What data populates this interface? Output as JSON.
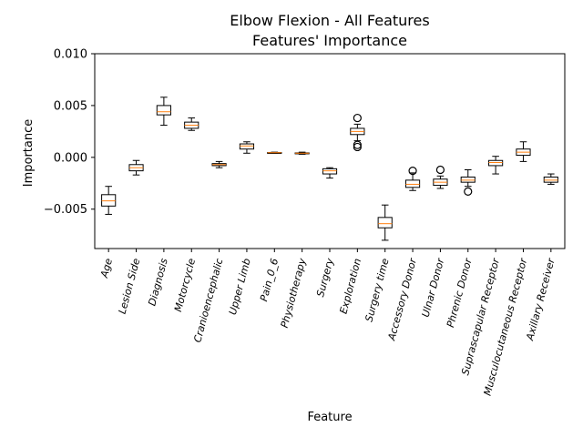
{
  "chart_data": {
    "type": "box",
    "title": "Elbow Flexion - All Features",
    "subtitle": "Features' Importance",
    "xlabel": "Feature",
    "ylabel": "Importance",
    "ylim": [
      -0.0088,
      0.01
    ],
    "yticks": [
      -0.005,
      0.0,
      0.005,
      0.01
    ],
    "ytick_labels": [
      "−0.005",
      "0.000",
      "0.005",
      "0.010"
    ],
    "grid": false,
    "colors": {
      "box": "#000000",
      "median": "#ff7f0e",
      "outlier": "#000000"
    },
    "categories": [
      "Age",
      "Lesion Side",
      "Diagnosis",
      "Motorcycle",
      "Cranioencephalic",
      "Upper Limb",
      "Pain_0_6",
      "Physiotherapy",
      "Surgery",
      "Exploration",
      "Surgery time",
      "Accessory Donor",
      "Ulnar Donor",
      "Phrenic Donor",
      "Suprascapular Receptor",
      "Musculocutaneous Receptor",
      "Axillary Receiver"
    ],
    "boxes": [
      {
        "whislo": -0.0055,
        "q1": -0.0047,
        "med": -0.0042,
        "q3": -0.0036,
        "whishi": -0.0028,
        "fliers": []
      },
      {
        "whislo": -0.0017,
        "q1": -0.0013,
        "med": -0.001,
        "q3": -0.0007,
        "whishi": -0.0003,
        "fliers": []
      },
      {
        "whislo": 0.0031,
        "q1": 0.0041,
        "med": 0.0044,
        "q3": 0.005,
        "whishi": 0.0058,
        "fliers": []
      },
      {
        "whislo": 0.0026,
        "q1": 0.0028,
        "med": 0.0031,
        "q3": 0.0034,
        "whishi": 0.0038,
        "fliers": []
      },
      {
        "whislo": -0.001,
        "q1": -0.0008,
        "med": -0.0007,
        "q3": -0.0006,
        "whishi": -0.0004,
        "fliers": []
      },
      {
        "whislo": 0.0004,
        "q1": 0.0008,
        "med": 0.0011,
        "q3": 0.0013,
        "whishi": 0.0015,
        "fliers": []
      },
      {
        "whislo": 0.0004,
        "q1": 0.00043,
        "med": 0.00045,
        "q3": 0.00047,
        "whishi": 0.0005,
        "fliers": []
      },
      {
        "whislo": 0.0003,
        "q1": 0.00037,
        "med": 0.0004,
        "q3": 0.00043,
        "whishi": 0.0005,
        "fliers": []
      },
      {
        "whislo": -0.002,
        "q1": -0.0016,
        "med": -0.0013,
        "q3": -0.0011,
        "whishi": -0.001,
        "fliers": []
      },
      {
        "whislo": 0.0016,
        "q1": 0.0022,
        "med": 0.0025,
        "q3": 0.0028,
        "whishi": 0.0032,
        "fliers": [
          0.0038,
          0.0012,
          0.001
        ]
      },
      {
        "whislo": -0.008,
        "q1": -0.0068,
        "med": -0.0064,
        "q3": -0.0058,
        "whishi": -0.0046,
        "fliers": []
      },
      {
        "whislo": -0.0032,
        "q1": -0.0029,
        "med": -0.0026,
        "q3": -0.0022,
        "whishi": -0.0015,
        "fliers": [
          -0.0013
        ]
      },
      {
        "whislo": -0.003,
        "q1": -0.0027,
        "med": -0.0024,
        "q3": -0.0021,
        "whishi": -0.0018,
        "fliers": [
          -0.0012
        ]
      },
      {
        "whislo": -0.0028,
        "q1": -0.0024,
        "med": -0.0022,
        "q3": -0.0019,
        "whishi": -0.0012,
        "fliers": [
          -0.0033
        ]
      },
      {
        "whislo": -0.0016,
        "q1": -0.0008,
        "med": -0.0005,
        "q3": -0.0003,
        "whishi": 0.0001,
        "fliers": []
      },
      {
        "whislo": -0.0004,
        "q1": 0.0002,
        "med": 0.0005,
        "q3": 0.0008,
        "whishi": 0.0015,
        "fliers": []
      },
      {
        "whislo": -0.0026,
        "q1": -0.0024,
        "med": -0.0022,
        "q3": -0.0019,
        "whishi": -0.0016,
        "fliers": []
      }
    ]
  }
}
